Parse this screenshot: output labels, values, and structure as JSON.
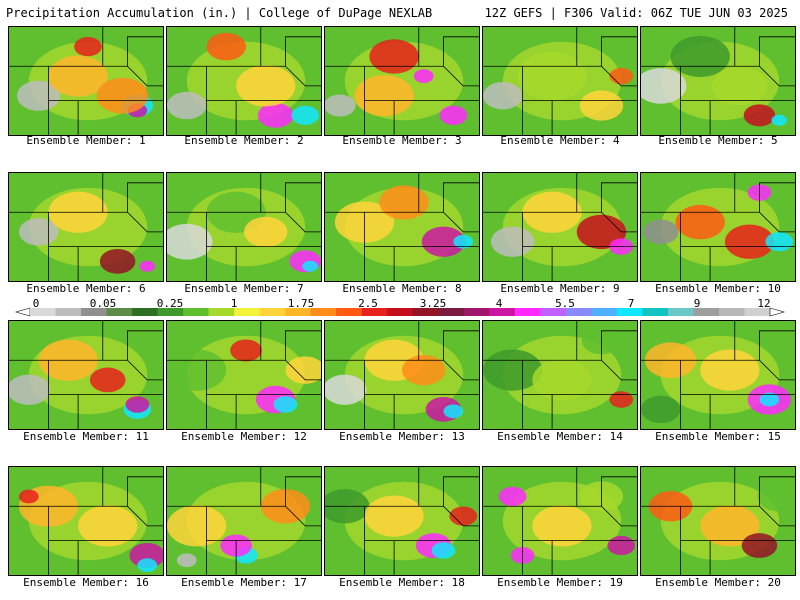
{
  "header": {
    "title": "Precipitation Accumulation (in.) | College of DuPage NEXLAB",
    "run_info": "12Z GEFS | F306 Valid: 06Z TUE JUN 03 2025"
  },
  "legend": {
    "ticks": [
      "0",
      "0.05",
      "0.25",
      "1",
      "1.75",
      "2.5",
      "3.25",
      "4",
      "5.5",
      "7",
      "9",
      "12"
    ],
    "colors": [
      "#d9d9d9",
      "#bdbdbd",
      "#8f8f8f",
      "#5c8c4a",
      "#2f6f24",
      "#3e9a2c",
      "#5fbf2f",
      "#a6d92d",
      "#f2f23a",
      "#ffd43b",
      "#ffb52a",
      "#ff8c1a",
      "#ff5a14",
      "#e8211c",
      "#c40f1f",
      "#951326",
      "#7a1b3d",
      "#a0166b",
      "#cc16a3",
      "#ff28ff",
      "#c060ff",
      "#8a8aff",
      "#4fb0ff",
      "#10e6ff",
      "#10c4c4",
      "#6cc8c8",
      "#9e9e9e",
      "#b8b8b8",
      "#d0d0d0"
    ]
  },
  "members": [
    {
      "label": "Ensemble Member: 1"
    },
    {
      "label": "Ensemble Member: 2"
    },
    {
      "label": "Ensemble Member: 3"
    },
    {
      "label": "Ensemble Member: 4"
    },
    {
      "label": "Ensemble Member: 5"
    },
    {
      "label": "Ensemble Member: 6"
    },
    {
      "label": "Ensemble Member: 7"
    },
    {
      "label": "Ensemble Member: 8"
    },
    {
      "label": "Ensemble Member: 9"
    },
    {
      "label": "Ensemble Member: 10"
    },
    {
      "label": "Ensemble Member: 11"
    },
    {
      "label": "Ensemble Member: 12"
    },
    {
      "label": "Ensemble Member: 13"
    },
    {
      "label": "Ensemble Member: 14"
    },
    {
      "label": "Ensemble Member: 15"
    },
    {
      "label": "Ensemble Member: 16"
    },
    {
      "label": "Ensemble Member: 17"
    },
    {
      "label": "Ensemble Member: 18"
    },
    {
      "label": "Ensemble Member: 19"
    },
    {
      "label": "Ensemble Member: 20"
    }
  ]
}
